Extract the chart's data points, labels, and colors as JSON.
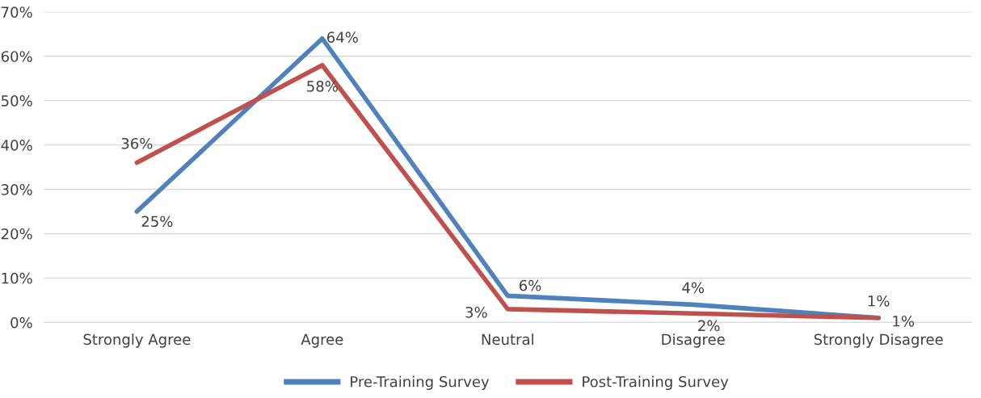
{
  "chart_data": {
    "type": "line",
    "categories": [
      "Strongly Agree",
      "Agree",
      "Neutral",
      "Disagree",
      "Strongly Disagree"
    ],
    "series": [
      {
        "name": "Pre-Training Survey",
        "color": "#4f81bd",
        "values": [
          25,
          64,
          6,
          4,
          1
        ],
        "value_labels": [
          "25%",
          "64%",
          "6%",
          "4%",
          "1%"
        ]
      },
      {
        "name": "Post-Training Survey",
        "color": "#c0504d",
        "values": [
          36,
          58,
          3,
          2,
          1
        ],
        "value_labels": [
          "36%",
          "58%",
          "3%",
          "2%",
          "1%"
        ]
      }
    ],
    "ylim": [
      0,
      70
    ],
    "yticks": [
      {
        "value": 0,
        "label": "0%"
      },
      {
        "value": 10,
        "label": "10%"
      },
      {
        "value": 20,
        "label": "20%"
      },
      {
        "value": 30,
        "label": "30%"
      },
      {
        "value": 40,
        "label": "40%"
      },
      {
        "value": 50,
        "label": "50%"
      },
      {
        "value": 60,
        "label": "60%"
      },
      {
        "value": 70,
        "label": "70%"
      }
    ],
    "grid": "y",
    "legend": "bottom",
    "marker": "none",
    "line_style": "solid"
  }
}
